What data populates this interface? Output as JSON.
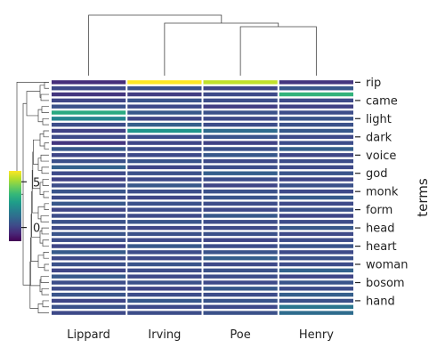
{
  "chart_data": {
    "type": "heatmap",
    "title": "",
    "xlabel": "",
    "ylabel": "terms",
    "columns": [
      "Lippard",
      "Irving",
      "Poe",
      "Henry"
    ],
    "row_tick_labels": [
      "rip",
      "came",
      "light",
      "dark",
      "voice",
      "god",
      "monk",
      "form",
      "head",
      "heart",
      "woman",
      "bosom",
      "hand"
    ],
    "row_tick_every": 3,
    "n_rows": 39,
    "colorbar": {
      "colormap": "viridis",
      "range": [
        -1.5,
        6.2
      ],
      "ticks": [
        0,
        5
      ],
      "tick_labels": [
        "0",
        "5"
      ]
    },
    "values": [
      [
        -0.5,
        6.2,
        5.5,
        -0.3
      ],
      [
        0.2,
        0.4,
        0.1,
        0.6
      ],
      [
        -0.3,
        -0.1,
        0.2,
        3.5
      ],
      [
        0.1,
        0.5,
        0.3,
        0.2
      ],
      [
        0.4,
        0.2,
        -0.1,
        0.0
      ],
      [
        3.2,
        0.6,
        0.4,
        0.3
      ],
      [
        2.0,
        0.1,
        0.2,
        0.5
      ],
      [
        0.3,
        0.8,
        0.3,
        0.4
      ],
      [
        0.0,
        2.5,
        1.2,
        0.6
      ],
      [
        0.2,
        0.3,
        0.5,
        0.2
      ],
      [
        -0.3,
        0.1,
        0.0,
        0.3
      ],
      [
        0.6,
        0.3,
        0.4,
        0.8
      ],
      [
        0.1,
        0.2,
        0.6,
        0.1
      ],
      [
        0.4,
        0.5,
        0.2,
        0.3
      ],
      [
        0.9,
        0.1,
        0.3,
        0.2
      ],
      [
        0.2,
        0.4,
        0.8,
        0.5
      ],
      [
        0.0,
        0.2,
        0.3,
        0.1
      ],
      [
        0.3,
        0.6,
        0.1,
        0.4
      ],
      [
        0.5,
        0.3,
        0.4,
        0.2
      ],
      [
        0.2,
        0.1,
        0.5,
        0.7
      ],
      [
        0.6,
        0.4,
        0.3,
        0.2
      ],
      [
        0.1,
        0.3,
        0.2,
        0.4
      ],
      [
        0.3,
        0.2,
        0.6,
        0.1
      ],
      [
        0.4,
        0.5,
        0.3,
        0.3
      ],
      [
        0.2,
        0.1,
        0.2,
        0.6
      ],
      [
        0.5,
        0.4,
        0.4,
        0.2
      ],
      [
        0.3,
        0.2,
        0.1,
        0.3
      ],
      [
        0.1,
        0.6,
        0.3,
        0.5
      ],
      [
        0.7,
        0.3,
        0.5,
        0.2
      ],
      [
        0.2,
        0.2,
        0.8,
        0.4
      ],
      [
        0.4,
        0.5,
        0.2,
        0.3
      ],
      [
        0.1,
        0.3,
        0.4,
        0.9
      ],
      [
        0.6,
        0.2,
        0.3,
        0.1
      ],
      [
        0.3,
        0.4,
        0.2,
        0.5
      ],
      [
        0.2,
        0.1,
        0.6,
        0.3
      ],
      [
        0.5,
        0.3,
        0.3,
        0.8
      ],
      [
        0.1,
        0.6,
        0.5,
        0.4
      ],
      [
        0.4,
        0.2,
        0.2,
        1.5
      ],
      [
        0.2,
        0.3,
        0.4,
        1.2
      ]
    ]
  }
}
